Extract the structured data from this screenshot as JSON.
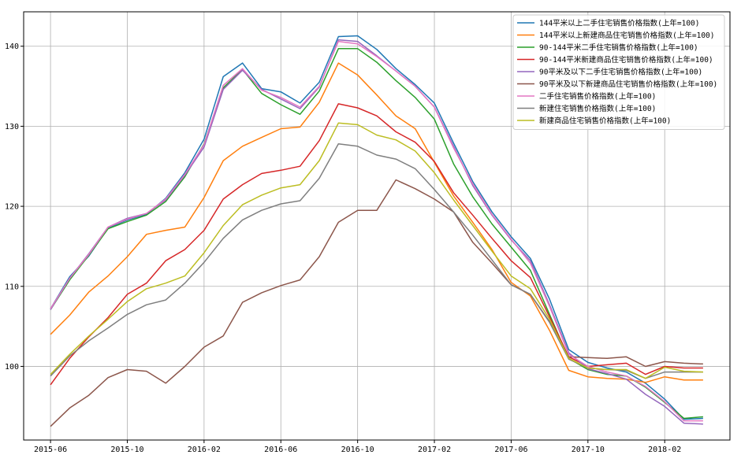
{
  "chart_data": {
    "type": "line",
    "title": "",
    "xlabel": "",
    "ylabel": "",
    "x": [
      "2015-06",
      "2015-07",
      "2015-08",
      "2015-09",
      "2015-10",
      "2015-11",
      "2015-12",
      "2016-01",
      "2016-02",
      "2016-03",
      "2016-04",
      "2016-05",
      "2016-06",
      "2016-07",
      "2016-08",
      "2016-09",
      "2016-10",
      "2016-11",
      "2016-12",
      "2017-01",
      "2017-02",
      "2017-03",
      "2017-04",
      "2017-05",
      "2017-06",
      "2017-07",
      "2017-08",
      "2017-09",
      "2017-10",
      "2017-11",
      "2017-12",
      "2018-01",
      "2018-02",
      "2018-03",
      "2018-04"
    ],
    "x_ticks": [
      "2015-06",
      "2015-10",
      "2016-02",
      "2016-06",
      "2016-10",
      "2017-02",
      "2017-06",
      "2017-10",
      "2018-02"
    ],
    "y_ticks": [
      100,
      110,
      120,
      130,
      140
    ],
    "ylim": [
      90.8,
      144.3
    ],
    "grid": true,
    "legend_position": "top-right",
    "series": [
      {
        "name": "144平米以上二手住宅销售价格指数(上年=100)",
        "color": "#1f77b4",
        "values": [
          107.2,
          111.2,
          113.8,
          117.3,
          118.3,
          119.0,
          121.0,
          124.2,
          128.4,
          136.2,
          137.9,
          134.7,
          134.3,
          132.9,
          135.5,
          141.2,
          141.3,
          139.6,
          137.2,
          135.2,
          132.9,
          127.9,
          123.1,
          119.3,
          116.2,
          113.5,
          108.4,
          102.1,
          100.5,
          99.8,
          99.3,
          97.9,
          95.9,
          93.4,
          93.5
        ]
      },
      {
        "name": "144平米以上新建商品住宅销售价格指数(上年=100)",
        "color": "#ff7f0e",
        "values": [
          104.0,
          106.4,
          109.3,
          111.3,
          113.7,
          116.5,
          117.0,
          117.4,
          121.1,
          125.7,
          127.5,
          128.6,
          129.7,
          129.9,
          133.0,
          137.9,
          136.4,
          133.9,
          131.3,
          129.7,
          125.5,
          121.3,
          118.0,
          114.6,
          110.5,
          108.8,
          104.5,
          99.5,
          98.7,
          98.5,
          98.4,
          98.0,
          98.7,
          98.3,
          98.3
        ]
      },
      {
        "name": "90-144平米二手住宅销售价格指数(上年=100)",
        "color": "#2ca02c",
        "values": [
          107.1,
          110.8,
          113.9,
          117.2,
          118.1,
          118.9,
          120.6,
          123.7,
          127.8,
          134.8,
          137.1,
          134.1,
          132.7,
          131.5,
          134.4,
          139.7,
          139.7,
          138.0,
          135.7,
          133.6,
          130.9,
          125.3,
          121.2,
          117.8,
          114.9,
          112.0,
          106.5,
          101.0,
          99.6,
          99.0,
          98.8,
          97.4,
          95.5,
          93.5,
          93.7
        ]
      },
      {
        "name": "90-144平米新建商品住宅销售价格指数(上年=100)",
        "color": "#d62728",
        "values": [
          97.7,
          101.0,
          103.7,
          106.1,
          109.0,
          110.4,
          113.2,
          114.6,
          117.0,
          120.9,
          122.7,
          124.1,
          124.5,
          125.0,
          128.2,
          132.8,
          132.3,
          131.3,
          129.3,
          128.0,
          125.6,
          121.7,
          118.9,
          116.0,
          113.2,
          111.1,
          106.2,
          101.2,
          100.0,
          100.2,
          100.4,
          99.0,
          100.0,
          99.8,
          99.8
        ]
      },
      {
        "name": "90平米及以下二手住宅销售价格指数(上年=100)",
        "color": "#9467bd",
        "values": [
          107.1,
          111.0,
          114.1,
          117.4,
          118.5,
          119.1,
          120.8,
          123.9,
          127.4,
          134.6,
          137.0,
          134.6,
          133.4,
          132.2,
          134.9,
          140.8,
          140.6,
          138.8,
          136.9,
          135.0,
          132.4,
          127.5,
          122.6,
          118.9,
          115.8,
          113.2,
          107.7,
          101.7,
          99.7,
          99.1,
          98.4,
          96.5,
          95.0,
          92.9,
          92.8
        ]
      },
      {
        "name": "90平米及以下新建商品住宅销售价格指数(上年=100)",
        "color": "#8c564b",
        "values": [
          92.5,
          94.8,
          96.4,
          98.6,
          99.6,
          99.4,
          97.9,
          100.0,
          102.4,
          103.8,
          108.0,
          109.2,
          110.1,
          110.8,
          113.7,
          118.0,
          119.5,
          119.5,
          123.3,
          122.2,
          120.9,
          119.3,
          115.5,
          112.9,
          110.2,
          109.0,
          105.6,
          101.2,
          101.1,
          101.0,
          101.2,
          100.0,
          100.6,
          100.4,
          100.3
        ]
      },
      {
        "name": "二手住宅销售价格指数(上年=100)",
        "color": "#e377c2",
        "values": [
          107.2,
          111.0,
          114.0,
          117.4,
          118.4,
          119.1,
          120.9,
          124.0,
          127.7,
          135.1,
          137.2,
          134.5,
          133.6,
          132.4,
          135.0,
          140.6,
          140.3,
          138.7,
          136.9,
          135.0,
          132.4,
          127.3,
          122.8,
          119.0,
          115.9,
          112.9,
          107.5,
          101.5,
          100.0,
          99.3,
          98.8,
          97.5,
          95.6,
          93.2,
          93.2
        ]
      },
      {
        "name": "新建住宅销售价格指数(上年=100)",
        "color": "#7f7f7f",
        "values": [
          98.8,
          101.3,
          103.2,
          104.8,
          106.5,
          107.7,
          108.3,
          110.4,
          113.0,
          116.0,
          118.3,
          119.5,
          120.3,
          120.7,
          123.5,
          127.8,
          127.5,
          126.4,
          125.9,
          124.7,
          122.1,
          119.3,
          116.4,
          113.3,
          110.2,
          109.0,
          105.5,
          100.9,
          99.8,
          99.6,
          99.5,
          98.5,
          99.3,
          99.3,
          99.3
        ]
      },
      {
        "name": "新建商品住宅销售价格指数(上年=100)",
        "color": "#bcbd22",
        "values": [
          99.0,
          101.5,
          103.8,
          105.9,
          108.1,
          109.7,
          110.4,
          111.3,
          114.2,
          117.6,
          120.2,
          121.4,
          122.3,
          122.7,
          125.7,
          130.4,
          130.2,
          128.9,
          128.3,
          126.9,
          124.2,
          120.8,
          117.6,
          114.4,
          111.3,
          109.7,
          105.9,
          101.0,
          99.8,
          99.6,
          99.6,
          98.5,
          99.9,
          99.4,
          99.3
        ]
      }
    ]
  }
}
